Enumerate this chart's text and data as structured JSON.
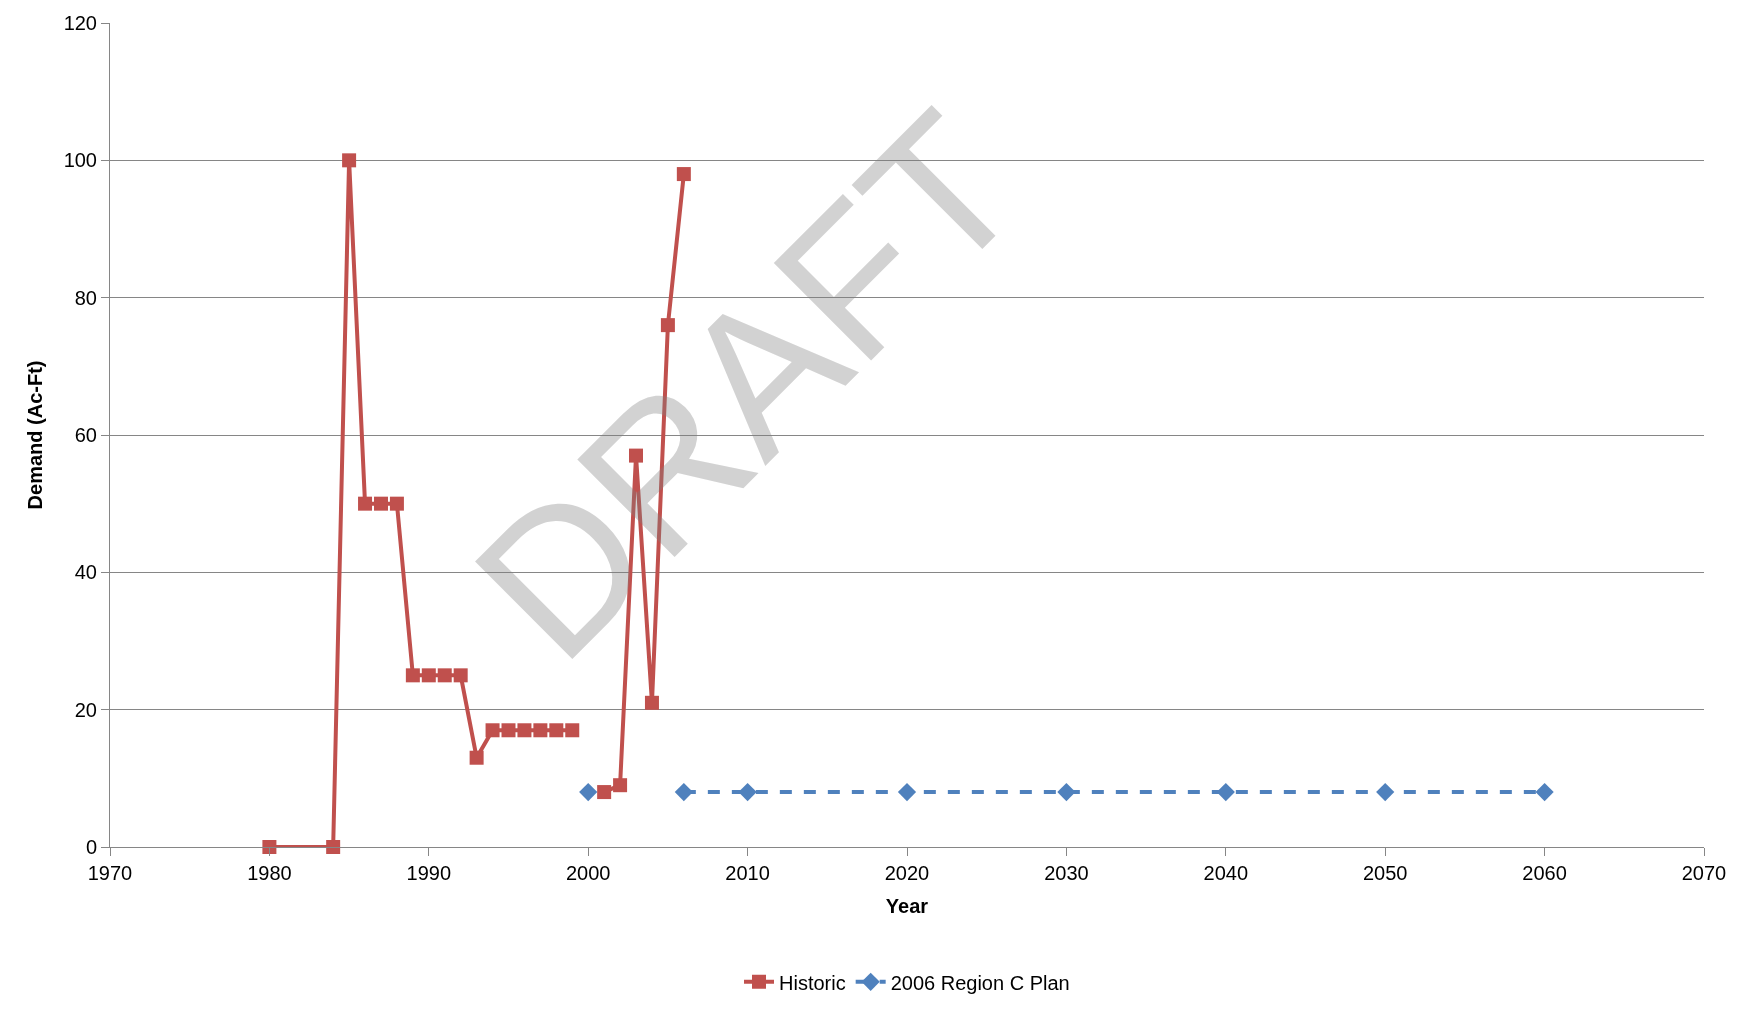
{
  "chart_data": {
    "type": "line",
    "xlabel": "Year",
    "ylabel": "Demand (Ac-Ft)",
    "xlim": [
      1970,
      2070
    ],
    "xticks": [
      1970,
      1980,
      1990,
      2000,
      2010,
      2020,
      2030,
      2040,
      2050,
      2060,
      2070
    ],
    "ylim": [
      0,
      120
    ],
    "yticks": [
      0,
      20,
      40,
      60,
      80,
      100,
      120
    ],
    "grid": "y",
    "legend": "bottom",
    "annotations": [
      "DRAFT"
    ],
    "series": [
      {
        "name": "Historic",
        "color": "#c0504d",
        "marker": "square",
        "line_style": "solid",
        "x": [
          1980,
          1984,
          1985,
          1986,
          1987,
          1988,
          1989,
          1990,
          1991,
          1992,
          1993,
          1994,
          1995,
          1996,
          1997,
          1998,
          1999,
          2000,
          2001,
          2002,
          2003,
          2004,
          2005,
          2006
        ],
        "values": [
          0,
          0,
          100,
          50,
          50,
          50,
          25,
          25,
          25,
          25,
          13,
          17,
          17,
          17,
          17,
          17,
          17,
          null,
          8,
          9,
          57,
          21,
          76,
          98
        ]
      },
      {
        "name": "2006 Region C Plan",
        "color": "#4f81bd",
        "marker": "diamond",
        "line_style": "dashed",
        "x": [
          2000,
          2003,
          2006,
          2010,
          2020,
          2030,
          2040,
          2050,
          2060
        ],
        "values": [
          8,
          null,
          8,
          8,
          8,
          8,
          8,
          8,
          8
        ]
      }
    ]
  }
}
